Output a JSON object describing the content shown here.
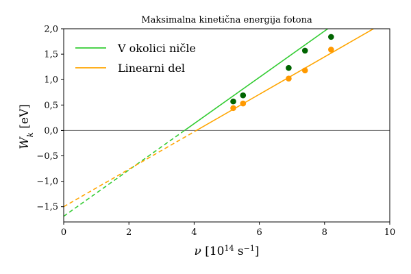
{
  "chart_data": {
    "type": "scatter",
    "title": "Maksimalna kinetična energija fotona",
    "xlabel": "ν [10¹⁴ s⁻¹]",
    "ylabel": "W_k [eV]",
    "xlim": [
      0,
      10
    ],
    "ylim": [
      -1.8,
      2.0
    ],
    "xticks": [
      0,
      2,
      4,
      6,
      8,
      10
    ],
    "xtick_labels": [
      "0",
      "2",
      "4",
      "6",
      "8",
      "10"
    ],
    "yticks": [
      -1.5,
      -1.0,
      -0.5,
      0.0,
      0.5,
      1.0,
      1.5,
      2.0
    ],
    "ytick_labels": [
      "−1,5",
      "−1,0",
      "−0,5",
      "0,0",
      "0,5",
      "1,0",
      "1,5",
      "2,0"
    ],
    "grid": false,
    "legend_position": "top-left",
    "zero_line": {
      "y": 0.0,
      "color": "#808080"
    },
    "series": [
      {
        "name": "V okolici ničle",
        "color": "#33cc33",
        "marker_color": "#006400",
        "points": [
          {
            "x": 5.2,
            "y": 0.57
          },
          {
            "x": 5.5,
            "y": 0.69
          },
          {
            "x": 6.9,
            "y": 1.23
          },
          {
            "x": 7.4,
            "y": 1.57
          },
          {
            "x": 8.2,
            "y": 1.84
          }
        ],
        "fit": {
          "slope": 0.4554,
          "intercept": -1.688,
          "solid_from": 3.71,
          "solid_to": 8.6,
          "dashed_from": 0,
          "dashed_to": 3.71
        }
      },
      {
        "name": "Linearni del",
        "color": "#ffa500",
        "marker_color": "#ff9900",
        "points": [
          {
            "x": 5.2,
            "y": 0.44
          },
          {
            "x": 5.5,
            "y": 0.53
          },
          {
            "x": 6.9,
            "y": 1.02
          },
          {
            "x": 7.4,
            "y": 1.18
          },
          {
            "x": 8.2,
            "y": 1.59
          }
        ],
        "fit": {
          "slope": 0.3684,
          "intercept": -1.5,
          "solid_from": 4.07,
          "solid_to": 9.5,
          "dashed_from": 0,
          "dashed_to": 4.07
        }
      }
    ]
  }
}
